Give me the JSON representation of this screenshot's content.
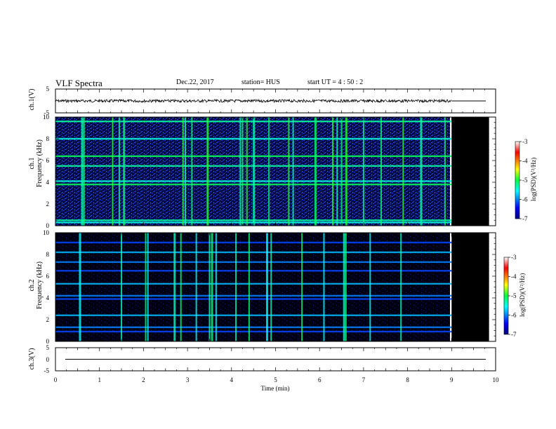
{
  "header": {
    "title": "VLF Spectra",
    "date": "Dec.22, 2017",
    "station": "station= HUS",
    "start": "start  UT =   4 : 50 : 2"
  },
  "chart_data": [
    {
      "type": "line",
      "panel": "ch1-waveform",
      "ylabel": "ch.1(V)",
      "ylim": [
        -5,
        5
      ],
      "yticks": [
        "5",
        "-5"
      ],
      "xlim": [
        0,
        10
      ],
      "data_end_min": 9,
      "baseline_v": 0
    },
    {
      "type": "heatmap",
      "panel": "ch1-spectrogram",
      "ylabel_line1": "ch.1",
      "ylabel_line2": "Frequency (kHz)",
      "ylim": [
        0,
        10
      ],
      "yticks": [
        "0",
        "2",
        "4",
        "6",
        "8",
        "10"
      ],
      "xlim": [
        0,
        10
      ],
      "data_end_min": 9,
      "no_data_end_min": 9.85,
      "colorbar_label": "log(PSD)(V²/Hz)",
      "colorbar_range": [
        -7,
        -3
      ],
      "colorbar_ticks": [
        "-3",
        "-4",
        "-5",
        "-6",
        "-7"
      ],
      "strong_bands_khz": [
        0.3,
        0.5,
        3.8,
        4.1,
        5.5,
        6.4,
        8.0,
        9.6
      ],
      "impulse_times_min": [
        0.6,
        0.65,
        1.3,
        1.45,
        1.55,
        2.9,
        2.95,
        3.1,
        3.45,
        4.2,
        4.25,
        4.35,
        4.5,
        4.85,
        5.3,
        5.4,
        5.9,
        6.3,
        6.4,
        6.5,
        6.6,
        7.0,
        7.4,
        7.9,
        8.3,
        8.85
      ]
    },
    {
      "type": "heatmap",
      "panel": "ch2-spectrogram",
      "ylabel_line1": "ch.2",
      "ylabel_line2": "Frequency (kHz)",
      "ylim": [
        0,
        10
      ],
      "yticks": [
        "0",
        "2",
        "4",
        "6",
        "8",
        "10"
      ],
      "xlim": [
        0,
        10
      ],
      "data_end_min": 9,
      "no_data_end_min": 9.85,
      "colorbar_label": "log(PSD)(V²/Hz)",
      "colorbar_range": [
        -7,
        -3
      ],
      "colorbar_ticks": [
        "-3",
        "-4",
        "-5",
        "-6",
        "-7"
      ],
      "strong_bands_khz": [
        0.9,
        1.3,
        2.4,
        3.9,
        4.2,
        5.3,
        6.5,
        7.3,
        8.2,
        9.1
      ],
      "impulse_times_min": [
        0.55,
        1.5,
        2.05,
        2.1,
        2.7,
        2.85,
        3.2,
        3.5,
        3.55,
        3.65,
        4.1,
        4.4,
        4.8,
        4.9,
        5.6,
        6.1,
        6.55,
        6.6,
        7.15,
        7.85
      ]
    },
    {
      "type": "line",
      "panel": "ch3-waveform",
      "ylabel": "ch.3(V)",
      "ylim": [
        -5,
        5
      ],
      "yticks": [
        "5",
        "0",
        "-5"
      ],
      "xlim": [
        0,
        10
      ],
      "xlabel": "Time  (min)",
      "xticks": [
        "0",
        "1",
        "2",
        "3",
        "4",
        "5",
        "6",
        "7",
        "8",
        "9",
        "10"
      ],
      "baseline_v": 0
    }
  ]
}
